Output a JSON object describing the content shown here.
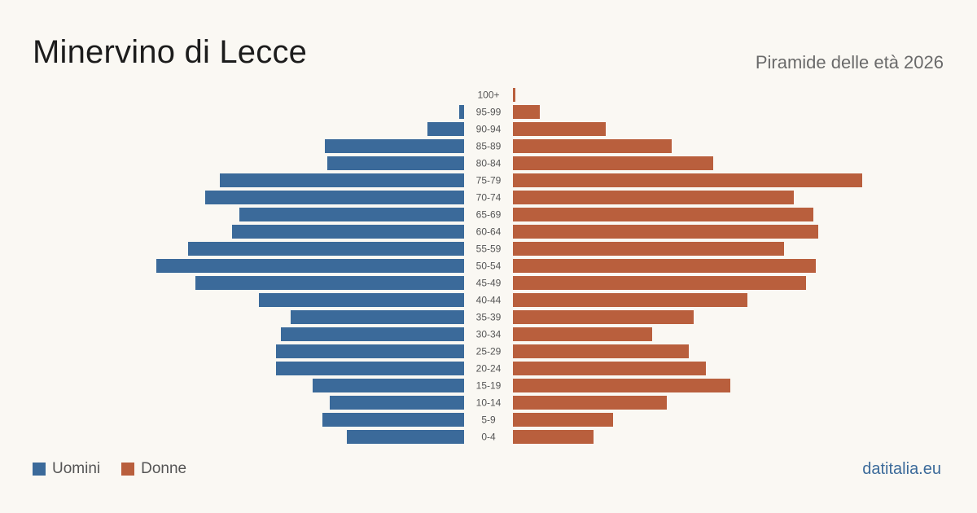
{
  "header": {
    "title": "Minervino di Lecce",
    "subtitle": "Piramide delle età 2026"
  },
  "legend": {
    "men_label": "Uomini",
    "women_label": "Donne"
  },
  "brand": "datitalia.eu",
  "colors": {
    "men": "#3b6a9a",
    "women": "#b95f3d",
    "background": "#faf8f3"
  },
  "chart_data": {
    "type": "bar",
    "orientation": "horizontal",
    "layout": "population-pyramid",
    "categories": [
      "100+",
      "95-99",
      "90-94",
      "85-89",
      "80-84",
      "75-79",
      "70-74",
      "65-69",
      "60-64",
      "55-59",
      "50-54",
      "45-49",
      "40-44",
      "35-39",
      "30-34",
      "25-29",
      "20-24",
      "15-19",
      "10-14",
      "5-9",
      "0-4"
    ],
    "series": [
      {
        "name": "Uomini",
        "side": "left",
        "values": [
          0,
          2,
          15,
          57,
          56,
          100,
          106,
          92,
          95,
          113,
          126,
          110,
          84,
          71,
          75,
          77,
          77,
          62,
          55,
          58,
          48
        ]
      },
      {
        "name": "Donne",
        "side": "right",
        "values": [
          1,
          11,
          38,
          65,
          82,
          143,
          115,
          123,
          125,
          111,
          124,
          120,
          96,
          74,
          57,
          72,
          79,
          89,
          63,
          41,
          33
        ]
      }
    ],
    "legend_position": "bottom-left",
    "grid": false
  }
}
